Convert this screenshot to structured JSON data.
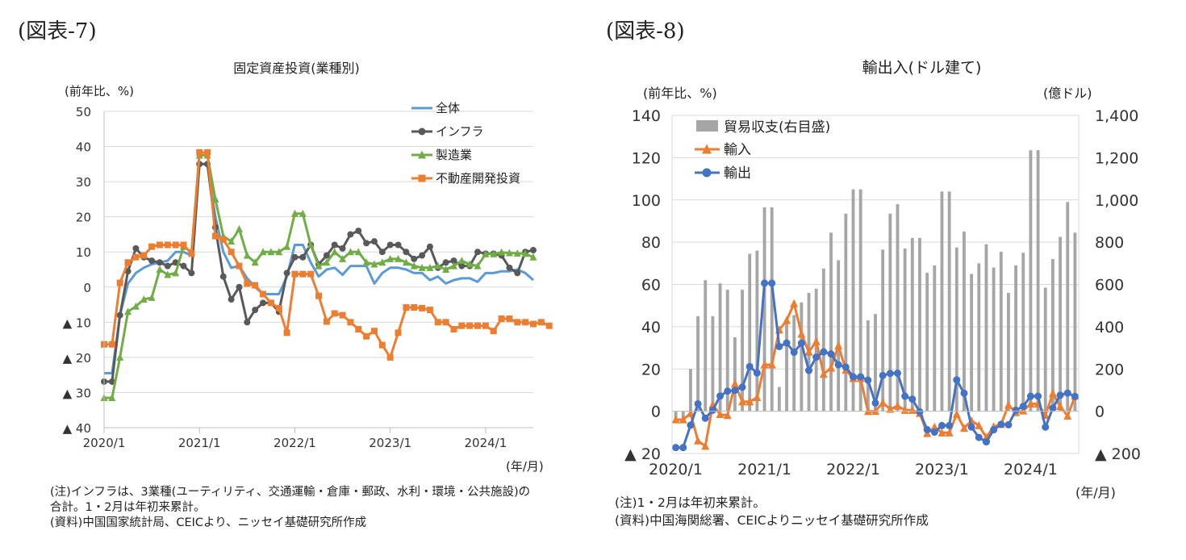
{
  "figures": [
    {
      "label": "(図表-7)",
      "notes": [
        "(注)インフラは、3業種(ユーティリティ、交通運輸・倉庫・郵政、水利・環境・公共施設)の",
        "合計。1・2月は年初来累計。",
        "(資料)中国国家統計局、CEICより、ニッセイ基礎研究所作成"
      ]
    },
    {
      "label": "(図表-8)",
      "notes": [
        "(注)1・2月は年初来累計。",
        "(資料)中国海関総署、CEICよりニッセイ基礎研究所作成"
      ]
    }
  ],
  "chart_data": [
    {
      "type": "line",
      "title": "固定資産投資(業種別)",
      "ylabel": "(前年比、%)",
      "xlabel": "(年/月)",
      "ylim": [
        -40,
        50
      ],
      "yticks": [
        50,
        40,
        30,
        20,
        10,
        0,
        -10,
        -20,
        -30,
        -40
      ],
      "ytick_labels": [
        "50",
        "40",
        "30",
        "20",
        "10",
        "0",
        "▲ 10",
        "▲ 20",
        "▲ 30",
        "▲ 40"
      ],
      "xtick_labels": [
        "2020/1",
        "2021/1",
        "2022/1",
        "2023/1",
        "2024/1"
      ],
      "x_start": "2020/1",
      "x_end": "2024/7",
      "grid": true,
      "legend": "top-right",
      "series": [
        {
          "name": "全体",
          "color": "#5b9bd5",
          "marker": "none",
          "values": [
            -24.5,
            -24.5,
            -16.1,
            -10.3,
            -6.3,
            -3.1,
            -1.6,
            -0.3,
            0.8,
            1.8,
            2.6,
            2.9,
            35.0,
            35.0,
            25.6,
            19.9,
            15.4,
            12.6,
            10.3,
            8.9,
            7.3,
            6.1,
            5.2,
            4.9,
            12.2,
            12.2,
            9.3,
            6.8,
            6.2,
            6.1,
            5.7,
            5.8,
            5.9,
            5.8,
            5.3,
            5.1,
            5.5,
            5.5,
            5.1,
            4.7,
            4.0,
            3.8,
            3.4,
            3.2,
            3.1,
            2.9,
            2.9,
            3.0,
            4.2,
            4.2,
            4.5,
            4.2,
            4.0,
            3.9,
            3.6
          ],
          "plotted": [
            -24.5,
            -24.5,
            -8,
            1,
            4,
            5.5,
            6.5,
            7,
            7.5,
            10,
            10,
            9,
            35,
            35,
            20,
            10,
            5.5,
            6,
            2.5,
            0,
            -2,
            -2,
            -2,
            3,
            12,
            12,
            7,
            3,
            5,
            5.5,
            3.5,
            6,
            6,
            6,
            1,
            4,
            5.5,
            5.5,
            5,
            4,
            4,
            2,
            3,
            1,
            2,
            2.5,
            2.5,
            1.5,
            4,
            4,
            4.5,
            4.5,
            5,
            4,
            2
          ]
        },
        {
          "name": "インフラ",
          "color": "#595959",
          "marker": "circle",
          "values": [
            -26.9,
            -26.9,
            -8,
            4.5,
            11,
            8.5,
            7.5,
            7,
            6,
            7,
            6,
            4,
            35,
            35,
            17,
            3,
            -3.5,
            0,
            -10,
            -6.5,
            -4.5,
            -4.5,
            -7,
            4,
            8.5,
            8.5,
            12,
            6.5,
            9,
            12,
            11,
            15,
            16,
            12.5,
            13,
            10,
            12,
            12,
            10,
            8,
            9,
            11.5,
            5.5,
            7,
            7.5,
            6,
            6,
            10,
            9.5,
            9.5,
            9,
            5.5,
            4,
            10,
            10.5
          ]
        },
        {
          "name": "製造業",
          "color": "#70ad47",
          "marker": "triangle",
          "values": [
            -31.5,
            -31.5,
            -20,
            -7,
            -5.5,
            -3.5,
            -3,
            5,
            3.5,
            4,
            11.5,
            10,
            37.5,
            37.5,
            25,
            14.5,
            13,
            16.5,
            9,
            7,
            10,
            10,
            10,
            11.5,
            20.9,
            20.9,
            12,
            6,
            7,
            10,
            8,
            10,
            10,
            7,
            6.5,
            7,
            8,
            8,
            7,
            6,
            5.5,
            5.5,
            6,
            5,
            6,
            7.5,
            6.5,
            6,
            9.4,
            9.4,
            9.9,
            9.7,
            9.6,
            9.5,
            8.5
          ]
        },
        {
          "name": "不動産開発投資",
          "color": "#ed7d31",
          "marker": "square",
          "values": [
            -16.3,
            -16.3,
            1.2,
            7,
            8.5,
            9,
            11.5,
            12,
            12,
            12,
            12,
            9.5,
            38.3,
            38.3,
            14.5,
            13.5,
            10,
            6,
            1,
            0.5,
            -2,
            -4.5,
            -6,
            -13,
            3.7,
            3.7,
            3.7,
            -2.5,
            -9.8,
            -7.5,
            -8,
            -10,
            -12,
            -14,
            -12.5,
            -16.5,
            -20,
            -13,
            -5.8,
            -5.8,
            -6,
            -6.5,
            -10,
            -10,
            -12,
            -11,
            -11,
            -11,
            -11,
            -12.5,
            -9,
            -9,
            -10,
            -10,
            -10.5,
            -10,
            -11
          ]
        }
      ]
    },
    {
      "type": "bar+line",
      "title": "輸出入(ドル建て)",
      "ylabel": "(前年比、%)",
      "y2label": "(億ドル)",
      "xlabel": "(年/月)",
      "ylim": [
        -20,
        140
      ],
      "y2lim": [
        -200,
        1400
      ],
      "yticks": [
        140,
        120,
        100,
        80,
        60,
        40,
        20,
        0,
        -20
      ],
      "ytick_labels": [
        "140",
        "120",
        "100",
        "80",
        "60",
        "40",
        "20",
        "0",
        "▲ 20"
      ],
      "y2ticks": [
        1400,
        1200,
        1000,
        800,
        600,
        400,
        200,
        0,
        -200
      ],
      "y2tick_labels": [
        "1,400",
        "1,200",
        "1,000",
        "800",
        "600",
        "400",
        "200",
        "0",
        "▲ 200"
      ],
      "xtick_labels": [
        "2020/1",
        "2021/1",
        "2022/1",
        "2023/1",
        "2024/1"
      ],
      "x_start": "2020/1",
      "x_end": "2024/7",
      "grid": true,
      "legend": "top-left",
      "bars": {
        "name": "貿易収支(右目盛)",
        "color": "#a6a6a6",
        "values": [
          -50,
          -50,
          200,
          450,
          620,
          450,
          605,
          575,
          350,
          575,
          745,
          760,
          965,
          965,
          115,
          430,
          455,
          515,
          560,
          580,
          675,
          845,
          715,
          935,
          1050,
          1050,
          430,
          460,
          765,
          935,
          980,
          770,
          820,
          820,
          655,
          690,
          1040,
          1040,
          775,
          850,
          650,
          700,
          790,
          680,
          755,
          560,
          690,
          750,
          1235,
          1235,
          585,
          720,
          825,
          990,
          845
        ]
      },
      "series": [
        {
          "name": "輸入",
          "color": "#ed7d31",
          "marker": "triangle",
          "values": [
            -4,
            -4,
            -1,
            -14,
            -16.5,
            3,
            -1.5,
            -2,
            13,
            4.5,
            4.5,
            6.5,
            22,
            22,
            38.5,
            43,
            51,
            36.5,
            28,
            33,
            17.5,
            20.5,
            31,
            19.5,
            15.5,
            15.5,
            -0.1,
            0,
            4,
            1,
            2.5,
            0.5,
            0.5,
            -1,
            -10.5,
            -7.5,
            -10.2,
            -10.2,
            -1.4,
            -8,
            -4.5,
            -6.8,
            -12.4,
            -7.3,
            -6.2,
            2.9,
            -0.6,
            0.2,
            3.5,
            3.5,
            -1.9,
            8.4,
            2.3,
            -2.3,
            7.2
          ]
        },
        {
          "name": "輸出",
          "color": "#4472c4",
          "marker": "circle",
          "values": [
            -17.2,
            -17.2,
            -6.6,
            3.5,
            -3.3,
            0.5,
            7.2,
            9.5,
            9.9,
            11.4,
            21.1,
            18.1,
            60.6,
            60.6,
            30.6,
            32.3,
            27.9,
            32.2,
            19.3,
            25.6,
            28.1,
            27.1,
            22,
            20.9,
            16.3,
            16.3,
            14.7,
            3.9,
            16.9,
            17.9,
            18,
            7.1,
            5.7,
            -0.3,
            -8.7,
            -9.9,
            -6.8,
            -6.8,
            14.8,
            8.5,
            -7.5,
            -12.4,
            -14.5,
            -8.8,
            -6.2,
            -6.4,
            0.5,
            2.3,
            7.1,
            7.1,
            -7.5,
            1.5,
            7.6,
            8.6,
            7
          ]
        }
      ]
    }
  ]
}
